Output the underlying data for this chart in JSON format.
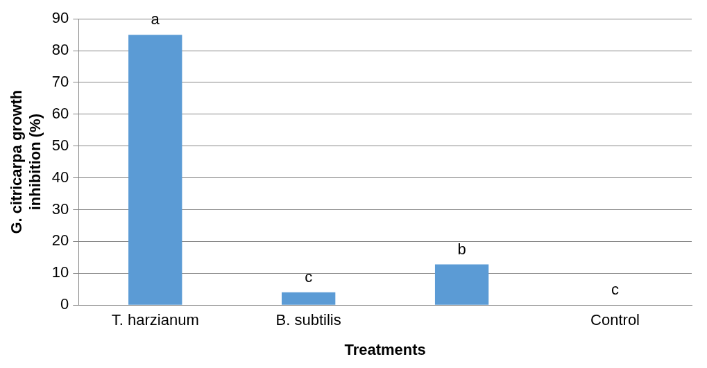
{
  "chart_data": {
    "type": "bar",
    "xlabel": "Treatments",
    "ylabel": "G. citricarpa growth inhibition (%)",
    "categories": [
      "T. harzianum",
      "B. subtilis",
      null,
      "Control"
    ],
    "values": [
      85,
      4,
      12.8,
      0
    ],
    "color": "#5b9bd5",
    "ylim": [
      0,
      90
    ],
    "yticks": [
      0,
      10,
      20,
      30,
      40,
      50,
      60,
      70,
      80,
      90
    ],
    "grid": "y",
    "legend": false,
    "annotations": [
      {
        "text": "a",
        "x": "T. harzianum",
        "y": 85
      },
      {
        "text": "c",
        "x": "B. subtilis",
        "y": 4
      },
      {
        "text": "b",
        "y": 12.8
      },
      {
        "text": "c",
        "x": "Control",
        "y": 0
      }
    ]
  }
}
